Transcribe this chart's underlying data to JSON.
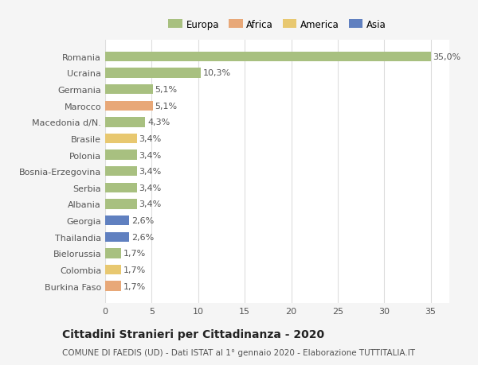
{
  "countries": [
    "Romania",
    "Ucraina",
    "Germania",
    "Marocco",
    "Macedonia d/N.",
    "Brasile",
    "Polonia",
    "Bosnia-Erzegovina",
    "Serbia",
    "Albania",
    "Georgia",
    "Thailandia",
    "Bielorussia",
    "Colombia",
    "Burkina Faso"
  ],
  "values": [
    35.0,
    10.3,
    5.1,
    5.1,
    4.3,
    3.4,
    3.4,
    3.4,
    3.4,
    3.4,
    2.6,
    2.6,
    1.7,
    1.7,
    1.7
  ],
  "labels": [
    "35,0%",
    "10,3%",
    "5,1%",
    "5,1%",
    "4,3%",
    "3,4%",
    "3,4%",
    "3,4%",
    "3,4%",
    "3,4%",
    "2,6%",
    "2,6%",
    "1,7%",
    "1,7%",
    "1,7%"
  ],
  "colors": [
    "#a8c080",
    "#a8c080",
    "#a8c080",
    "#e8a878",
    "#a8c080",
    "#e8c870",
    "#a8c080",
    "#a8c080",
    "#a8c080",
    "#a8c080",
    "#6080c0",
    "#6080c0",
    "#a8c080",
    "#e8c870",
    "#e8a878"
  ],
  "continent_colors": {
    "Europa": "#a8c080",
    "Africa": "#e8a878",
    "America": "#e8c870",
    "Asia": "#6080c0"
  },
  "legend_labels": [
    "Europa",
    "Africa",
    "America",
    "Asia"
  ],
  "title": "Cittadini Stranieri per Cittadinanza - 2020",
  "subtitle": "COMUNE DI FAEDIS (UD) - Dati ISTAT al 1° gennaio 2020 - Elaborazione TUTTITALIA.IT",
  "xlim": [
    0,
    37
  ],
  "xticks": [
    0,
    5,
    10,
    15,
    20,
    25,
    30,
    35
  ],
  "background_color": "#f5f5f5",
  "bar_background": "#ffffff",
  "grid_color": "#dddddd",
  "label_fontsize": 8,
  "tick_fontsize": 8,
  "title_fontsize": 10,
  "subtitle_fontsize": 7.5,
  "bar_height": 0.6
}
